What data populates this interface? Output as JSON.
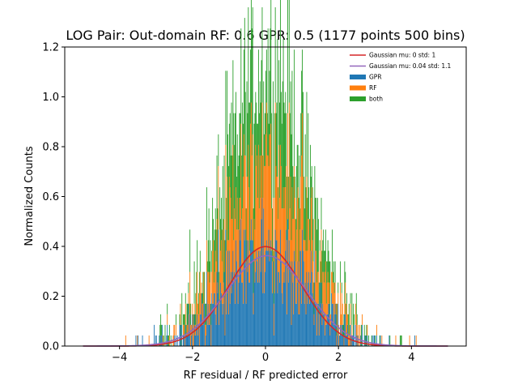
{
  "chart_data": {
    "type": "histogram",
    "title": "LOG Pair: Out-domain RF: 0.6 GPR: 0.5 (1177 points 500 bins)",
    "xlabel": "RF residual / RF predicted error",
    "ylabel": "Normalized Counts",
    "xlim": [
      -5.5,
      5.5
    ],
    "ylim": [
      0,
      1.2
    ],
    "xticks": [
      -4,
      -2,
      0,
      2,
      4
    ],
    "xtick_labels": [
      "−4",
      "−2",
      "0",
      "2",
      "4"
    ],
    "yticks": [
      0.0,
      0.2,
      0.4,
      0.6,
      0.8,
      1.0,
      1.2
    ],
    "ytick_labels": [
      "0.0",
      "0.2",
      "0.4",
      "0.6",
      "0.8",
      "1.0",
      "1.2"
    ],
    "grid": false,
    "legend_position": "top-right",
    "histogram_range": [
      -5,
      5
    ],
    "bins": 500,
    "points": 1177,
    "curves": [
      {
        "name": "Gaussian mu: 0 std: 1",
        "mu": 0,
        "std": 1,
        "color": "#d62728"
      },
      {
        "name": "Gaussian mu: 0.04 std: 1.1",
        "mu": 0.04,
        "std": 1.1,
        "color": "#9467bd"
      }
    ],
    "series": [
      {
        "name": "GPR",
        "color": "#1f77b4"
      },
      {
        "name": "RF",
        "color": "#ff7f0e"
      },
      {
        "name": "both",
        "color": "#2ca02c"
      }
    ]
  }
}
